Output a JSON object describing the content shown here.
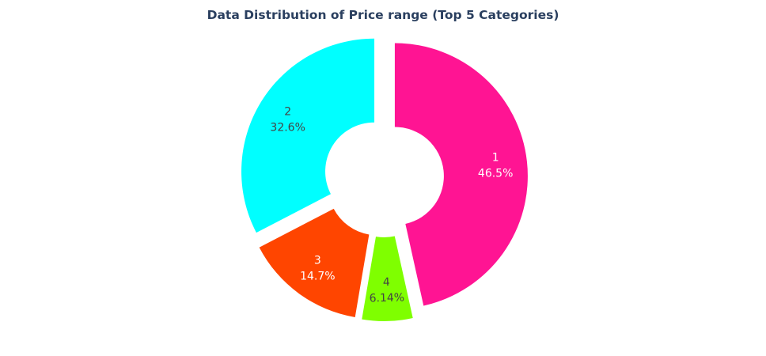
{
  "chart_data": {
    "type": "pie",
    "title": "Data Distribution of Price range (Top 5 Categories)",
    "hole": true,
    "slices": [
      {
        "label": "1",
        "percent_text": "46.5%",
        "value": 46.5,
        "color": "#ff1493",
        "text_color": "#ffffff"
      },
      {
        "label": "4",
        "percent_text": "6.14%",
        "value": 6.14,
        "color": "#7fff00",
        "text_color": "#444444"
      },
      {
        "label": "3",
        "percent_text": "14.7%",
        "value": 14.7,
        "color": "#ff4500",
        "text_color": "#ffffff"
      },
      {
        "label": "2",
        "percent_text": "32.6%",
        "value": 32.6,
        "color": "#00ffff",
        "text_color": "#444444"
      }
    ]
  }
}
